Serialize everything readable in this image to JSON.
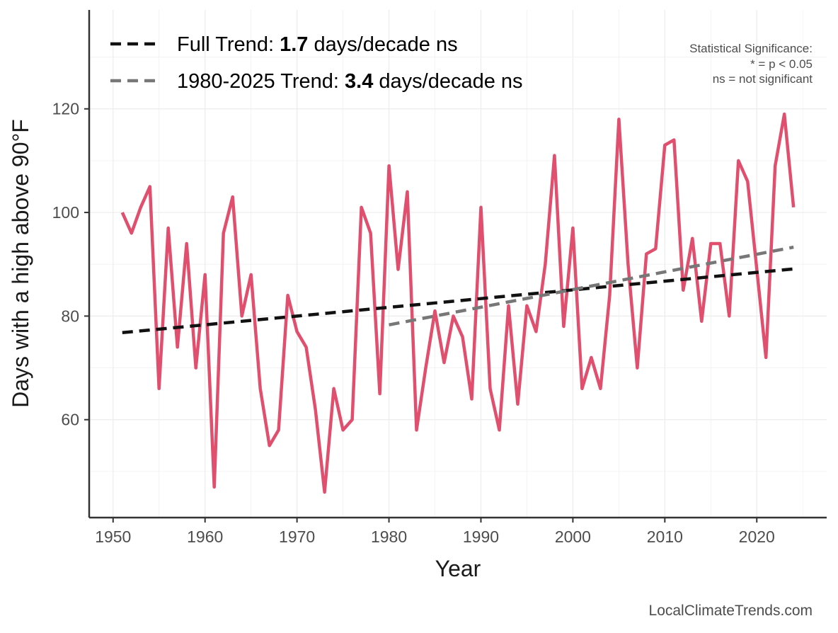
{
  "chart_data": {
    "type": "line",
    "title": "",
    "xlabel": "Year",
    "ylabel": "Days with a high above 90°F",
    "xlim": [
      1947.4,
      2027.6
    ],
    "ylim": [
      41.1,
      139.1
    ],
    "xticks": [
      1950,
      1960,
      1970,
      1980,
      1990,
      2000,
      2010,
      2020
    ],
    "yticks": [
      60,
      80,
      100,
      120
    ],
    "grid": true,
    "legend_position": "top-left",
    "series": [
      {
        "color": "#E0506E",
        "style": "solid",
        "x": [
          1951,
          1952,
          1953,
          1954,
          1955,
          1956,
          1957,
          1958,
          1959,
          1960,
          1961,
          1962,
          1963,
          1964,
          1965,
          1966,
          1967,
          1968,
          1969,
          1970,
          1971,
          1972,
          1973,
          1974,
          1975,
          1976,
          1977,
          1978,
          1979,
          1980,
          1981,
          1982,
          1983,
          1984,
          1985,
          1986,
          1987,
          1988,
          1989,
          1990,
          1991,
          1992,
          1993,
          1994,
          1995,
          1996,
          1997,
          1998,
          1999,
          2000,
          2001,
          2002,
          2003,
          2004,
          2005,
          2006,
          2007,
          2008,
          2009,
          2010,
          2011,
          2012,
          2013,
          2014,
          2015,
          2016,
          2017,
          2018,
          2019,
          2020,
          2021,
          2022,
          2023,
          2024
        ],
        "y": [
          100,
          96,
          101,
          105,
          66,
          97,
          74,
          94,
          70,
          88,
          47,
          96,
          103,
          80,
          88,
          66,
          55,
          58,
          84,
          77,
          74,
          62,
          46,
          66,
          58,
          60,
          101,
          96,
          65,
          109,
          89,
          104,
          58,
          70,
          81,
          71,
          80,
          76,
          64,
          101,
          66,
          58,
          82,
          63,
          82,
          77,
          90,
          111,
          78,
          97,
          66,
          72,
          66,
          84,
          118,
          90,
          70,
          92,
          93,
          113,
          114,
          85,
          95,
          79,
          94,
          94,
          80,
          110,
          106,
          89,
          72,
          109,
          119,
          101
        ]
      },
      {
        "name": "Full Trend",
        "color": "#111111",
        "style": "dashed",
        "x": [
          1951,
          2024
        ],
        "y": [
          76.8,
          89.1
        ]
      },
      {
        "name": "1980-2025 Trend",
        "color": "#777777",
        "style": "dashed",
        "x": [
          1980,
          2024
        ],
        "y": [
          78.3,
          93.3
        ]
      }
    ],
    "legend": [
      {
        "prefix": "Full Trend: ",
        "value": "1.7",
        "suffix": " days/decade ns",
        "color": "#111111"
      },
      {
        "prefix": "1980-2025 Trend: ",
        "value": "3.4",
        "suffix": " days/decade ns",
        "color": "#777777"
      }
    ],
    "annotations": {
      "significance": [
        "Statistical Significance:",
        "* = p < 0.05",
        "ns = not significant"
      ],
      "watermark": "LocalClimateTrends.com"
    }
  }
}
